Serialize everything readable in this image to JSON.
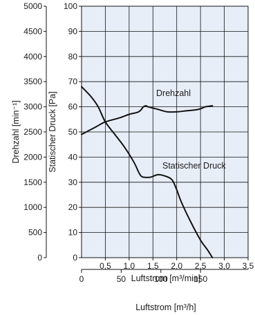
{
  "chart_data": {
    "type": "line",
    "plot_background": "#e8eef8",
    "curve_color": "#111111",
    "grid": true,
    "x_axis": {
      "label": "Luftstrom [m³/min]",
      "range": [
        0,
        3.5
      ],
      "ticks": [
        0,
        0.5,
        1.0,
        1.5,
        2.0,
        2.5,
        3.0,
        3.5
      ],
      "tick_labels": [
        "0",
        "0,5",
        "1,0",
        "1,5",
        "2,0",
        "2,5",
        "3,0",
        "3,5"
      ]
    },
    "x2_axis": {
      "label": "Luftstrom [m³/h]",
      "tick_values": [
        0,
        50,
        100,
        150
      ],
      "tick_labels": [
        "0",
        "50",
        "100",
        "150"
      ]
    },
    "y_axis_left": {
      "label": "Drehzahl [min⁻¹]",
      "range": [
        0,
        5000
      ],
      "ticks": [
        0,
        500,
        1000,
        1500,
        2000,
        2500,
        3000,
        3500,
        4000,
        4500,
        5000
      ],
      "tick_labels": [
        "0",
        "500",
        "1000",
        "1500",
        "2000",
        "2500",
        "3000",
        "3500",
        "4000",
        "4500",
        "5000"
      ]
    },
    "y_axis_right": {
      "label": "Statischer Druck [Pa]",
      "range": [
        0,
        100
      ],
      "ticks": [
        0,
        10,
        20,
        30,
        40,
        50,
        60,
        70,
        80,
        90,
        100
      ],
      "tick_labels": [
        "0",
        "10",
        "20",
        "30",
        "40",
        "50",
        "60",
        "70",
        "80",
        "90",
        "100"
      ]
    },
    "series": [
      {
        "name": "Drehzahl",
        "unit_axis": "y_axis_left",
        "x": [
          0,
          0.3,
          0.5,
          0.8,
          1.0,
          1.2,
          1.3,
          1.35,
          1.4,
          1.6,
          1.8,
          2.0,
          2.2,
          2.4,
          2.5,
          2.6,
          2.75
        ],
        "y": [
          2450,
          2600,
          2700,
          2780,
          2850,
          2900,
          3000,
          3020,
          3000,
          2950,
          2900,
          2900,
          2920,
          2940,
          2960,
          3000,
          3020
        ]
      },
      {
        "name": "Statischer Druck",
        "unit_axis": "y_axis_right",
        "x": [
          0,
          0.2,
          0.35,
          0.5,
          0.7,
          0.9,
          1.1,
          1.2,
          1.25,
          1.3,
          1.45,
          1.6,
          1.75,
          1.9,
          2.0,
          2.1,
          2.3,
          2.5,
          2.65,
          2.75
        ],
        "y": [
          68,
          64,
          60,
          54,
          49,
          44,
          38,
          34,
          32.5,
          32,
          32,
          33,
          32.5,
          31,
          27,
          22,
          14,
          7,
          3,
          0
        ]
      }
    ],
    "annotations": [
      {
        "text": "Drehzahl",
        "series": "Drehzahl"
      },
      {
        "text": "Statischer Druck",
        "series": "Statischer Druck"
      }
    ]
  }
}
